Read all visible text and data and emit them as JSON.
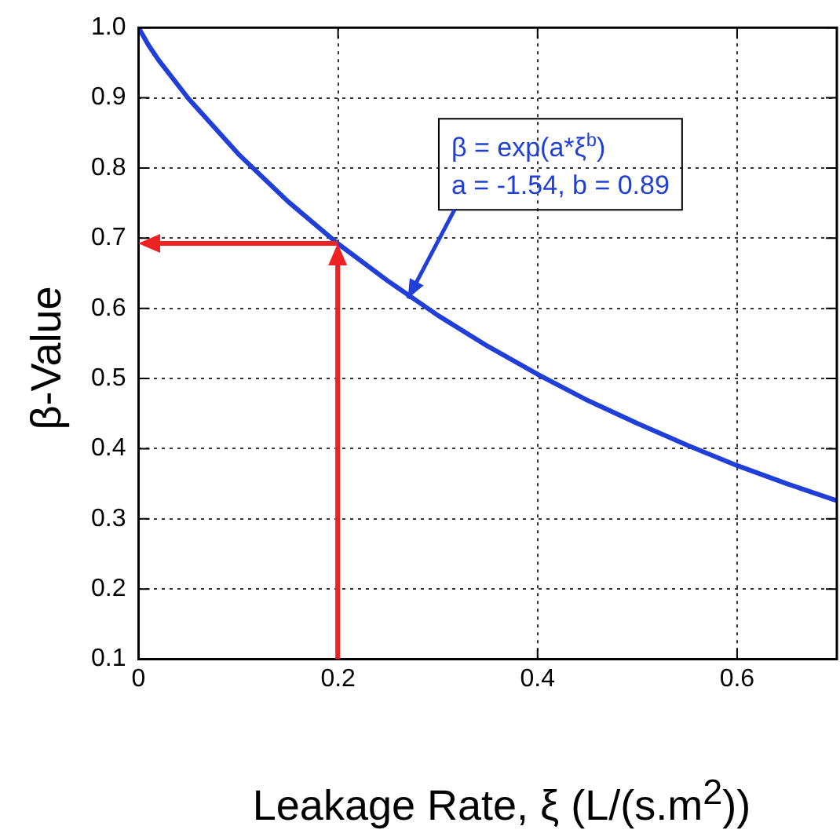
{
  "chart_data": {
    "type": "line",
    "xlabel": "Leakage Rate, ξ (L/(s.m$^{2}$))",
    "ylabel": "β-Value",
    "xlim": [
      0,
      0.7
    ],
    "xticks": [
      0,
      0.2,
      0.4,
      0.6
    ],
    "ylim": [
      0.1,
      1.0
    ],
    "yticks": [
      0.1,
      0.2,
      0.3,
      0.4,
      0.5,
      0.6,
      0.7,
      0.8,
      0.9,
      {
        "value": 1.0,
        "label": "1.0"
      }
    ],
    "grid": true,
    "legend": false,
    "marker": "none",
    "line_style": "solid",
    "series": [
      {
        "color": "#1f3fd8",
        "x": [
          0,
          0.01,
          0.02,
          0.05,
          0.1,
          0.15,
          0.2,
          0.25,
          0.3,
          0.35,
          0.4,
          0.45,
          0.5,
          0.55,
          0.6,
          0.65,
          0.7
        ],
        "values": [
          1.0,
          0.975,
          0.954,
          0.899,
          0.82,
          0.752,
          0.692,
          0.639,
          0.59,
          0.546,
          0.506,
          0.469,
          0.436,
          0.405,
          0.376,
          0.35,
          0.326
        ]
      }
    ],
    "annotations": [
      {
        "text": "β = exp(a*ξ$^{b}$)\na = -1.54, b = 0.89",
        "x": 0.27,
        "y": 0.614
      }
    ]
  }
}
